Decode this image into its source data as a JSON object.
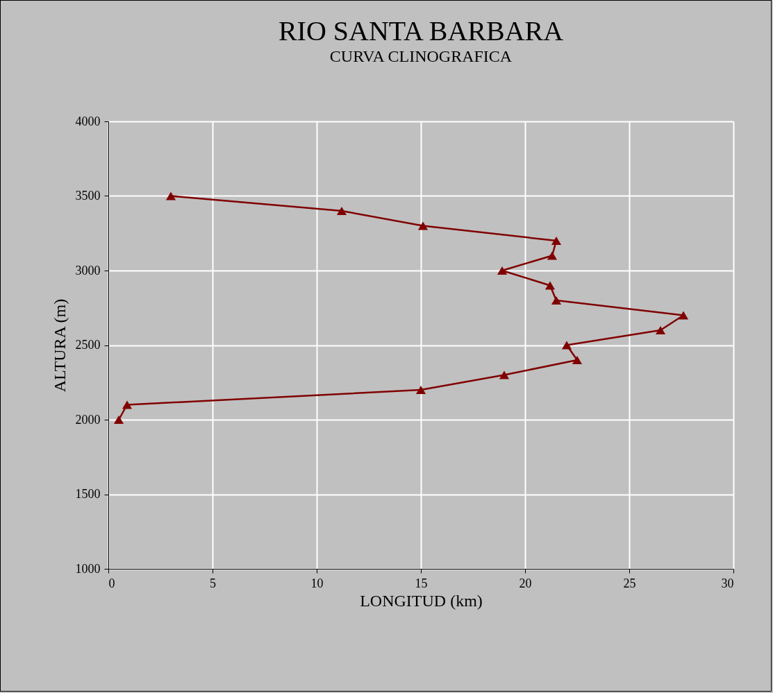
{
  "chart_data": {
    "type": "line",
    "title": "RIO SANTA BARBARA",
    "subtitle": "CURVA CLINOGRAFICA",
    "xlabel": "LONGITUD (km)",
    "ylabel": "ALTURA (m)",
    "series": [
      {
        "color": "#800000",
        "x": [
          3.0,
          11.2,
          15.1,
          21.5,
          21.3,
          18.9,
          21.2,
          21.5,
          27.6,
          26.5,
          22.0,
          22.5,
          19.0,
          15.0,
          0.9,
          0.5
        ],
        "values": [
          3500,
          3400,
          3300,
          3200,
          3100,
          3000,
          2900,
          2800,
          2700,
          2600,
          2500,
          2400,
          2300,
          2200,
          2100,
          2000
        ]
      }
    ],
    "xlim": [
      0,
      30
    ],
    "xticks": [
      0,
      5,
      10,
      15,
      20,
      25,
      30
    ],
    "ylim": [
      1000,
      4000
    ],
    "yticks": [
      1000,
      1500,
      2000,
      2500,
      3000,
      3500,
      4000
    ],
    "grid": true,
    "marker": "triangle",
    "line_style": "solid"
  }
}
